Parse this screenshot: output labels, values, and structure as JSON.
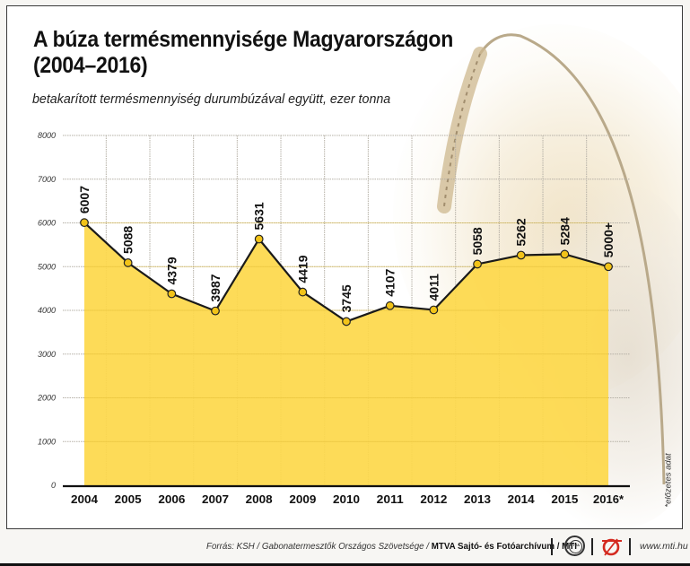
{
  "header": {
    "title_line1": "A búza termésmennyisége Magyarországon",
    "title_line2": "(2004–2016)",
    "subtitle": "betakarított termésmennyiség durumbúzával együtt, ezer tonna"
  },
  "footnote": "*előzetes adat",
  "footer": {
    "source_prefix": "Forrás: KSH / Gabonatermesztők Országos Szövetsége / ",
    "source_bold": "MTVA Sajtó- és Fotóarchívum / MTI",
    "logo_mtva_text": "MTVA",
    "website": "www.mti.hu"
  },
  "colors": {
    "area_fill": "#FDD84B",
    "line": "#1a1a1a",
    "marker_fill": "#F2C318",
    "grid": "#b5b0a6",
    "axis": "#111111"
  },
  "chart_data": {
    "type": "area",
    "title": "A búza termésmennyisége Magyarországon (2004–2016)",
    "subtitle": "betakarított termésmennyiség durumbúzával együtt, ezer tonna",
    "xlabel": "",
    "ylabel": "ezer tonna",
    "categories": [
      "2004",
      "2005",
      "2006",
      "2007",
      "2008",
      "2009",
      "2010",
      "2011",
      "2012",
      "2013",
      "2014",
      "2015",
      "2016*"
    ],
    "values": [
      6007,
      5088,
      4379,
      3987,
      5631,
      4419,
      3745,
      4107,
      4011,
      5058,
      5262,
      5284,
      5000
    ],
    "data_labels": [
      "6007",
      "5088",
      "4379",
      "3987",
      "5631",
      "4419",
      "3745",
      "4107",
      "4011",
      "5058",
      "5262",
      "5284",
      "5000+"
    ],
    "ylim": [
      0,
      8000
    ],
    "yticks": [
      0,
      1000,
      2000,
      3000,
      4000,
      5000,
      6000,
      7000,
      8000
    ],
    "grid": true,
    "legend": null,
    "annotations": [
      "*előzetes adat"
    ]
  }
}
